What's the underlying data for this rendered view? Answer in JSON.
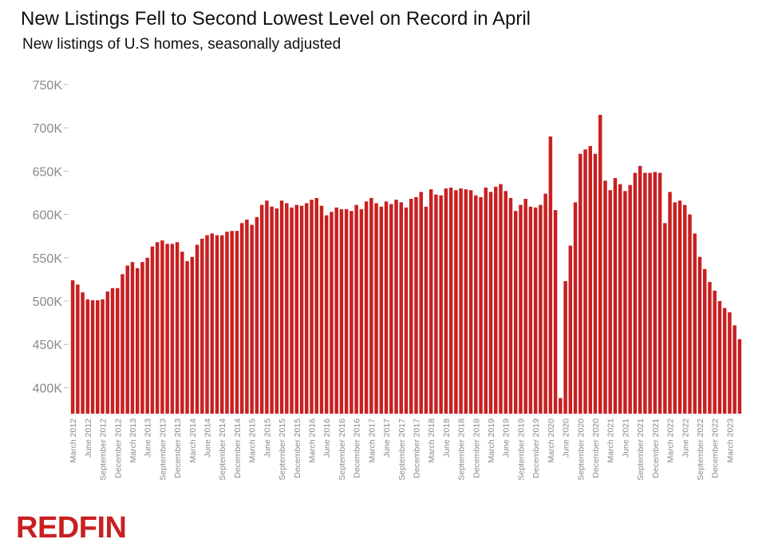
{
  "brand": {
    "logo_text": "REDFIN",
    "color": "#c82021"
  },
  "chart_data": {
    "type": "bar",
    "title": "New Listings Fell to Second Lowest Level on Record in April",
    "subtitle": "New listings of U.S homes, seasonally adjusted",
    "xlabel": "",
    "ylabel": "",
    "ylim": [
      370000,
      760000
    ],
    "yticks": [
      400000,
      450000,
      500000,
      550000,
      600000,
      650000,
      700000,
      750000
    ],
    "ytick_labels": [
      "400K",
      "450K",
      "500K",
      "550K",
      "600K",
      "650K",
      "700K",
      "750K"
    ],
    "grid": false,
    "bar_color": "#c82021",
    "start": {
      "year": 2012,
      "month": 3
    },
    "x_tick_labels": [
      "March 2012",
      "June 2012",
      "September 2012",
      "December 2012",
      "March 2013",
      "June 2013",
      "September 2013",
      "December 2013",
      "March 2014",
      "June 2014",
      "September 2014",
      "December 2014",
      "March 2015",
      "June 2015",
      "September 2015",
      "December 2015",
      "March 2016",
      "June 2016",
      "September 2016",
      "December 2016",
      "March 2017",
      "June 2017",
      "September 2017",
      "December 2017",
      "March 2018",
      "June 2018",
      "September 2018",
      "December 2018",
      "March 2019",
      "June 2019",
      "September 2019",
      "December 2019",
      "March 2020",
      "June 2020",
      "September 2020",
      "December 2020",
      "March 2021",
      "June 2021",
      "September 2021",
      "December 2021",
      "March 2022",
      "June 2022",
      "September 2022",
      "December 2022",
      "March 2023"
    ],
    "values": [
      524000,
      519000,
      510000,
      502000,
      501000,
      501000,
      502000,
      511000,
      515000,
      515000,
      531000,
      541000,
      545000,
      538000,
      545000,
      550000,
      563000,
      568000,
      570000,
      566000,
      566000,
      568000,
      557000,
      546000,
      551000,
      565000,
      572000,
      576000,
      578000,
      576000,
      576000,
      580000,
      581000,
      581000,
      590000,
      594000,
      588000,
      597000,
      611000,
      616000,
      609000,
      607000,
      616000,
      613000,
      608000,
      611000,
      610000,
      613000,
      617000,
      619000,
      610000,
      599000,
      603000,
      608000,
      606000,
      606000,
      604000,
      611000,
      606000,
      615000,
      619000,
      613000,
      609000,
      615000,
      612000,
      617000,
      614000,
      608000,
      618000,
      620000,
      626000,
      609000,
      629000,
      623000,
      622000,
      630000,
      631000,
      628000,
      630000,
      629000,
      628000,
      622000,
      620000,
      631000,
      626000,
      632000,
      635000,
      627000,
      619000,
      604000,
      611000,
      618000,
      609000,
      608000,
      611000,
      624000,
      690000,
      605000,
      388000,
      523000,
      564000,
      614000,
      670000,
      675000,
      679000,
      670000,
      715000,
      639000,
      628000,
      642000,
      635000,
      627000,
      634000,
      648000,
      656000,
      648000,
      648000,
      649000,
      648000,
      590000,
      626000,
      614000,
      616000,
      611000,
      600000,
      578000,
      551000,
      537000,
      522000,
      512000,
      500000,
      492000,
      487000,
      472000,
      456000
    ]
  }
}
